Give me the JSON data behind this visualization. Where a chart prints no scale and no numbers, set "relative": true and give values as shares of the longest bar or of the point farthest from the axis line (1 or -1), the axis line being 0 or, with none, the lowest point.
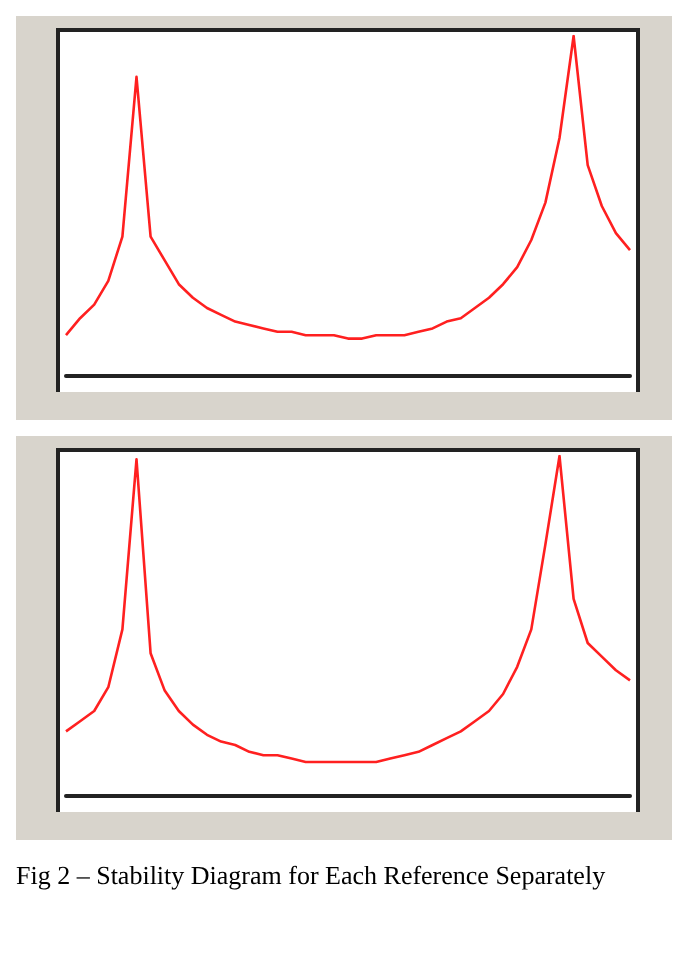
{
  "chart_data": [
    {
      "type": "line",
      "relative": true,
      "marker": "none",
      "line_style": "solid",
      "categories": [
        null,
        null,
        null,
        null,
        null,
        null,
        null,
        null,
        null,
        null,
        null,
        null,
        null,
        null,
        null,
        null,
        null,
        null,
        null,
        null,
        null,
        null,
        null,
        null,
        null,
        null,
        null,
        null,
        null,
        null,
        null,
        null,
        null,
        null,
        null,
        null,
        null,
        null,
        null,
        null,
        null
      ],
      "series": [
        {
          "color": "#ff2020",
          "values": [
            0.12,
            0.17,
            0.21,
            0.28,
            0.41,
            0.88,
            0.41,
            0.34,
            0.27,
            0.23,
            0.2,
            0.18,
            0.16,
            0.15,
            0.14,
            0.13,
            0.13,
            0.12,
            0.12,
            0.12,
            0.11,
            0.11,
            0.12,
            0.12,
            0.12,
            0.13,
            0.14,
            0.16,
            0.17,
            0.2,
            0.23,
            0.27,
            0.32,
            0.4,
            0.51,
            0.7,
            1.0,
            0.62,
            0.5,
            0.42,
            0.37
          ]
        }
      ]
    },
    {
      "type": "line",
      "relative": true,
      "marker": "none",
      "line_style": "solid",
      "categories": [
        null,
        null,
        null,
        null,
        null,
        null,
        null,
        null,
        null,
        null,
        null,
        null,
        null,
        null,
        null,
        null,
        null,
        null,
        null,
        null,
        null,
        null,
        null,
        null,
        null,
        null,
        null,
        null,
        null,
        null,
        null,
        null,
        null,
        null,
        null,
        null,
        null,
        null,
        null,
        null,
        null
      ],
      "series": [
        {
          "color": "#ff2020",
          "values": [
            0.19,
            0.22,
            0.25,
            0.32,
            0.49,
            0.99,
            0.42,
            0.31,
            0.25,
            0.21,
            0.18,
            0.16,
            0.15,
            0.13,
            0.12,
            0.12,
            0.11,
            0.1,
            0.1,
            0.1,
            0.1,
            0.1,
            0.1,
            0.11,
            0.12,
            0.13,
            0.15,
            0.17,
            0.19,
            0.22,
            0.25,
            0.3,
            0.38,
            0.49,
            0.74,
            1.0,
            0.58,
            0.45,
            0.41,
            0.37,
            0.34
          ]
        }
      ],
      "annotations": [
        "Fig 2 – Stability Diagram for Each Reference Separately"
      ]
    }
  ]
}
